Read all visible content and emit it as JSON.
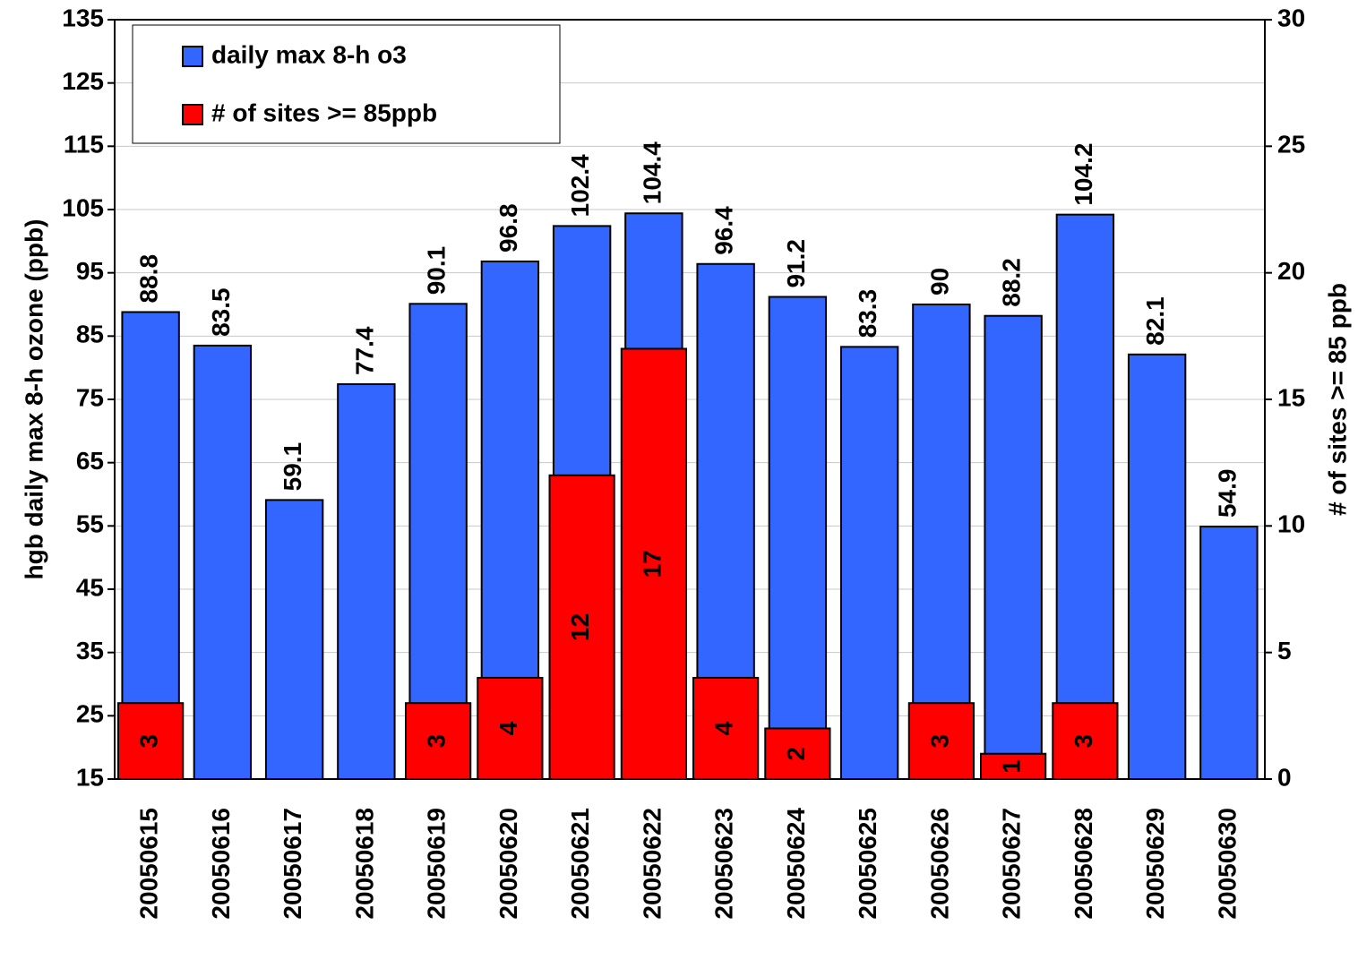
{
  "chart_data": {
    "type": "bar",
    "categories": [
      "20050615",
      "20050616",
      "20050617",
      "20050618",
      "20050619",
      "20050620",
      "20050621",
      "20050622",
      "20050623",
      "20050624",
      "20050625",
      "20050626",
      "20050627",
      "20050628",
      "20050629",
      "20050630"
    ],
    "series": [
      {
        "name": "daily max 8-h o3",
        "color": "#3366ff",
        "values": [
          88.8,
          83.5,
          59.1,
          77.4,
          90.1,
          96.8,
          102.4,
          104.4,
          96.4,
          91.2,
          83.3,
          90,
          88.2,
          104.2,
          82.1,
          54.9
        ]
      },
      {
        "name": "# of sites >= 85ppb",
        "color": "#ff0000",
        "axis": "y2",
        "values": [
          3,
          null,
          null,
          null,
          3,
          4,
          12,
          17,
          4,
          2,
          null,
          3,
          1,
          3,
          null,
          null
        ]
      }
    ],
    "ylabel": "hgb daily max 8-h ozone (ppb)",
    "y2label": "# of sites >= 85 ppb",
    "ylim": [
      15,
      135
    ],
    "yticks": [
      15,
      25,
      35,
      45,
      55,
      65,
      75,
      85,
      95,
      105,
      115,
      125,
      135
    ],
    "y2lim": [
      0,
      30
    ],
    "y2ticks": [
      0,
      5,
      10,
      15,
      20,
      25,
      30
    ],
    "grid": true,
    "legend": "upper left"
  }
}
